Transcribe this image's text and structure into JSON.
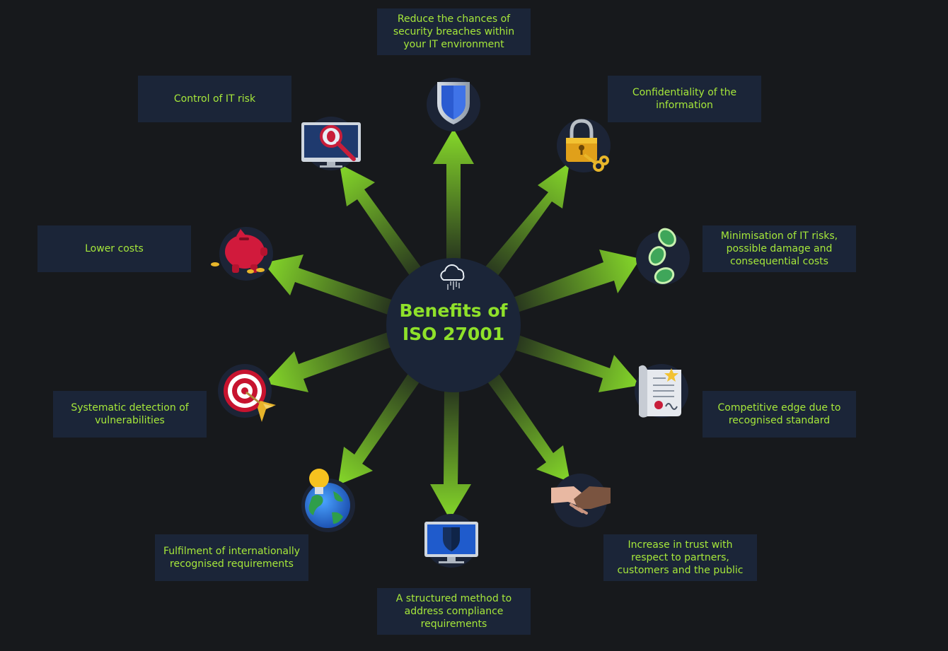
{
  "center": {
    "title_line1": "Benefits of",
    "title_line2": "ISO 27001",
    "icon": "cloud-binary-icon"
  },
  "benefits": [
    {
      "text": "Reduce the chances of security breaches within your IT environment",
      "icon": "shield-icon"
    },
    {
      "text": "Confidentiality of the information",
      "icon": "padlock-key-icon"
    },
    {
      "text": "Minimisation of IT risks, possible damage and consequential costs",
      "icon": "coins-icon"
    },
    {
      "text": "Competitive edge due to recognised standard",
      "icon": "certificate-icon"
    },
    {
      "text": "Increase in trust with respect to partners, customers and the public",
      "icon": "handshake-icon"
    },
    {
      "text": "A structured method to address compliance requirements",
      "icon": "monitor-shield-icon"
    },
    {
      "text": "Fulfilment of internationally recognised requirements",
      "icon": "globe-lightbulb-icon"
    },
    {
      "text": "Systematic detection of vulnerabilities",
      "icon": "target-icon"
    },
    {
      "text": "Lower costs",
      "icon": "piggy-bank-icon"
    },
    {
      "text": "Control of IT risk",
      "icon": "monitor-magnifier-bug-icon"
    }
  ],
  "colors": {
    "background": "#17191c",
    "box": "#1b2538",
    "text": "#a6e83a",
    "arrow": "#86d92a",
    "icon_disc": "#1c2436"
  }
}
